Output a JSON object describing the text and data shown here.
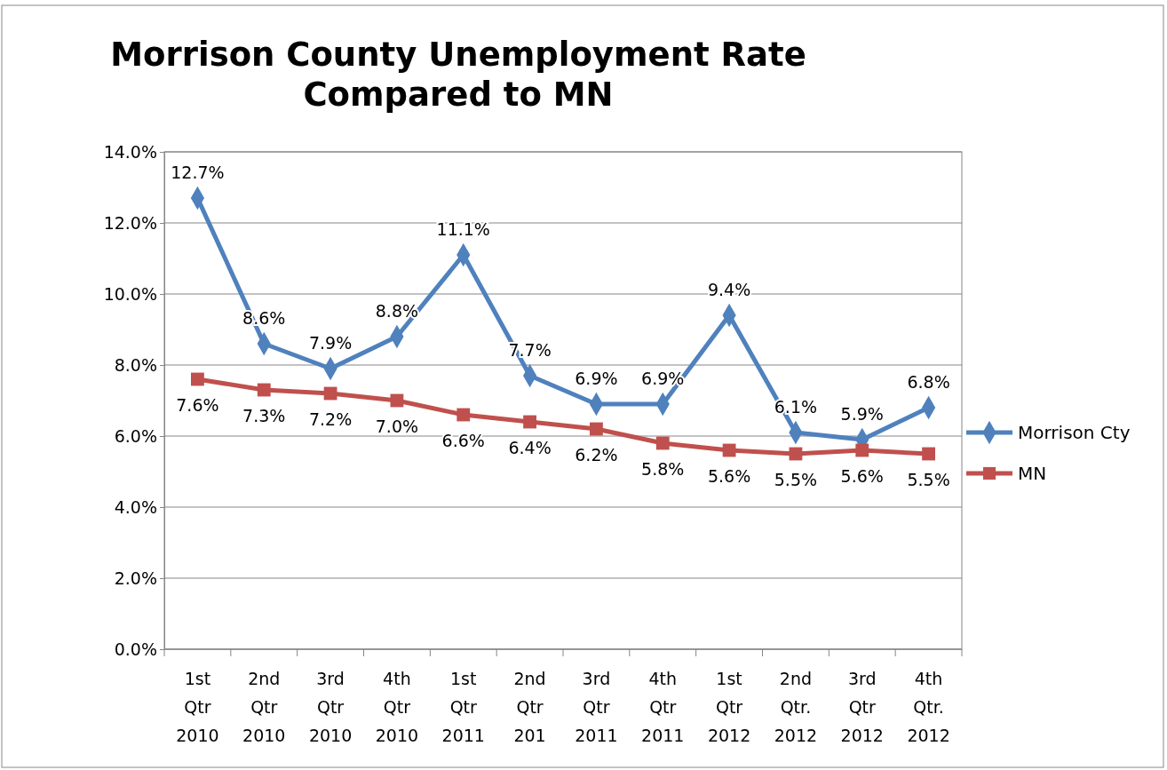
{
  "chart_data": {
    "type": "line",
    "title": "Morrison County Unemployment Rate Compared to MN",
    "categories": [
      "1st Qtr 2010",
      "2nd Qtr 2010",
      "3rd Qtr 2010",
      "4th Qtr 2010",
      "1st Qtr 2011",
      "2nd Qtr 201",
      "3rd Qtr 2011",
      "4th Qtr 2011",
      "1st Qtr 2012",
      "2nd Qtr. 2012",
      "3rd Qtr 2012",
      "4th Qtr. 2012"
    ],
    "series": [
      {
        "name": "Morrison Cty",
        "color": "#4f81bd",
        "marker": "diamond",
        "values": [
          12.7,
          8.6,
          7.9,
          8.8,
          11.1,
          7.7,
          6.9,
          6.9,
          9.4,
          6.1,
          5.9,
          6.8
        ],
        "value_labels": [
          "12.7%",
          "8.6%",
          "7.9%",
          "8.8%",
          "11.1%",
          "7.7%",
          "6.9%",
          "6.9%",
          "9.4%",
          "6.1%",
          "5.9%",
          "6.8%"
        ]
      },
      {
        "name": "MN",
        "color": "#c0504d",
        "marker": "square",
        "values": [
          7.6,
          7.3,
          7.2,
          7.0,
          6.6,
          6.4,
          6.2,
          5.8,
          5.6,
          5.5,
          5.6,
          5.5
        ],
        "value_labels": [
          "7.6%",
          "7.3%",
          "7.2%",
          "7.0%",
          "6.6%",
          "6.4%",
          "6.2%",
          "5.8%",
          "5.6%",
          "5.5%",
          "5.6%",
          "5.5%"
        ]
      }
    ],
    "ylim": [
      0,
      14
    ],
    "yticks": [
      {
        "value": 0,
        "label": "0.0%"
      },
      {
        "value": 2,
        "label": "2.0%"
      },
      {
        "value": 4,
        "label": "4.0%"
      },
      {
        "value": 6,
        "label": "6.0%"
      },
      {
        "value": 8,
        "label": "8.0%"
      },
      {
        "value": 10,
        "label": "10.0%"
      },
      {
        "value": 12,
        "label": "12.0%"
      },
      {
        "value": 14,
        "label": "14.0%"
      }
    ],
    "grid": "y",
    "legend": "right"
  }
}
